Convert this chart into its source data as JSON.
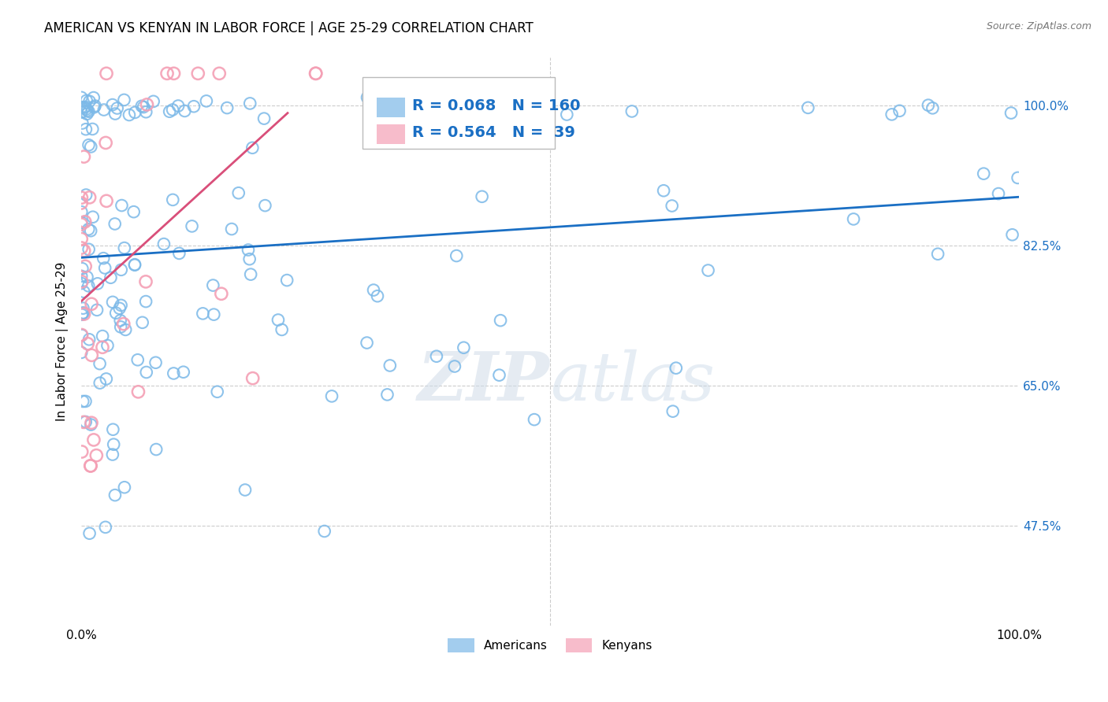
{
  "title": "AMERICAN VS KENYAN IN LABOR FORCE | AGE 25-29 CORRELATION CHART",
  "source": "Source: ZipAtlas.com",
  "ylabel": "In Labor Force | Age 25-29",
  "xlim": [
    0,
    1
  ],
  "ylim": [
    0.35,
    1.06
  ],
  "ytick_positions": [
    0.475,
    0.65,
    0.825,
    1.0
  ],
  "ytick_labels": [
    "47.5%",
    "65.0%",
    "82.5%",
    "100.0%"
  ],
  "R_american": 0.068,
  "N_american": 160,
  "R_kenyan": 0.564,
  "N_kenyan": 39,
  "american_color": "#7cb9e8",
  "kenyan_color": "#f4a0b5",
  "american_line_color": "#1a6fc4",
  "kenyan_line_color": "#d94f7a",
  "background_color": "#ffffff",
  "grid_color": "#cccccc",
  "title_fontsize": 12,
  "label_fontsize": 11,
  "tick_fontsize": 11,
  "legend_fontsize": 14
}
